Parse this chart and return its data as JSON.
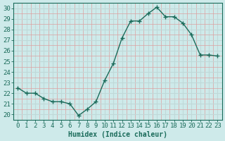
{
  "x": [
    0,
    1,
    2,
    3,
    4,
    5,
    6,
    7,
    8,
    9,
    10,
    11,
    12,
    13,
    14,
    15,
    16,
    17,
    18,
    19,
    20,
    21,
    22,
    23
  ],
  "y": [
    22.5,
    22.0,
    22.0,
    21.5,
    21.2,
    21.2,
    21.0,
    19.9,
    20.5,
    21.2,
    23.2,
    24.8,
    27.2,
    28.8,
    28.8,
    29.5,
    30.1,
    29.2,
    29.2,
    28.6,
    27.5,
    25.6,
    25.6,
    25.5
  ],
  "line_color": "#1a6b5a",
  "marker": "+",
  "marker_size": 4.0,
  "line_width": 1.0,
  "xlabel": "Humidex (Indice chaleur)",
  "xlim": [
    -0.5,
    23.5
  ],
  "ylim": [
    19.5,
    30.5
  ],
  "yticks": [
    20,
    21,
    22,
    23,
    24,
    25,
    26,
    27,
    28,
    29,
    30
  ],
  "xticks": [
    0,
    1,
    2,
    3,
    4,
    5,
    6,
    7,
    8,
    9,
    10,
    11,
    12,
    13,
    14,
    15,
    16,
    17,
    18,
    19,
    20,
    21,
    22,
    23
  ],
  "background_color": "#ceeaea",
  "major_grid_color": "#c0d8d8",
  "minor_grid_color": "#dca0a0",
  "tick_color": "#1a6b5a",
  "label_color": "#1a6b5a",
  "xlabel_fontsize": 7,
  "tick_fontsize": 6.5
}
